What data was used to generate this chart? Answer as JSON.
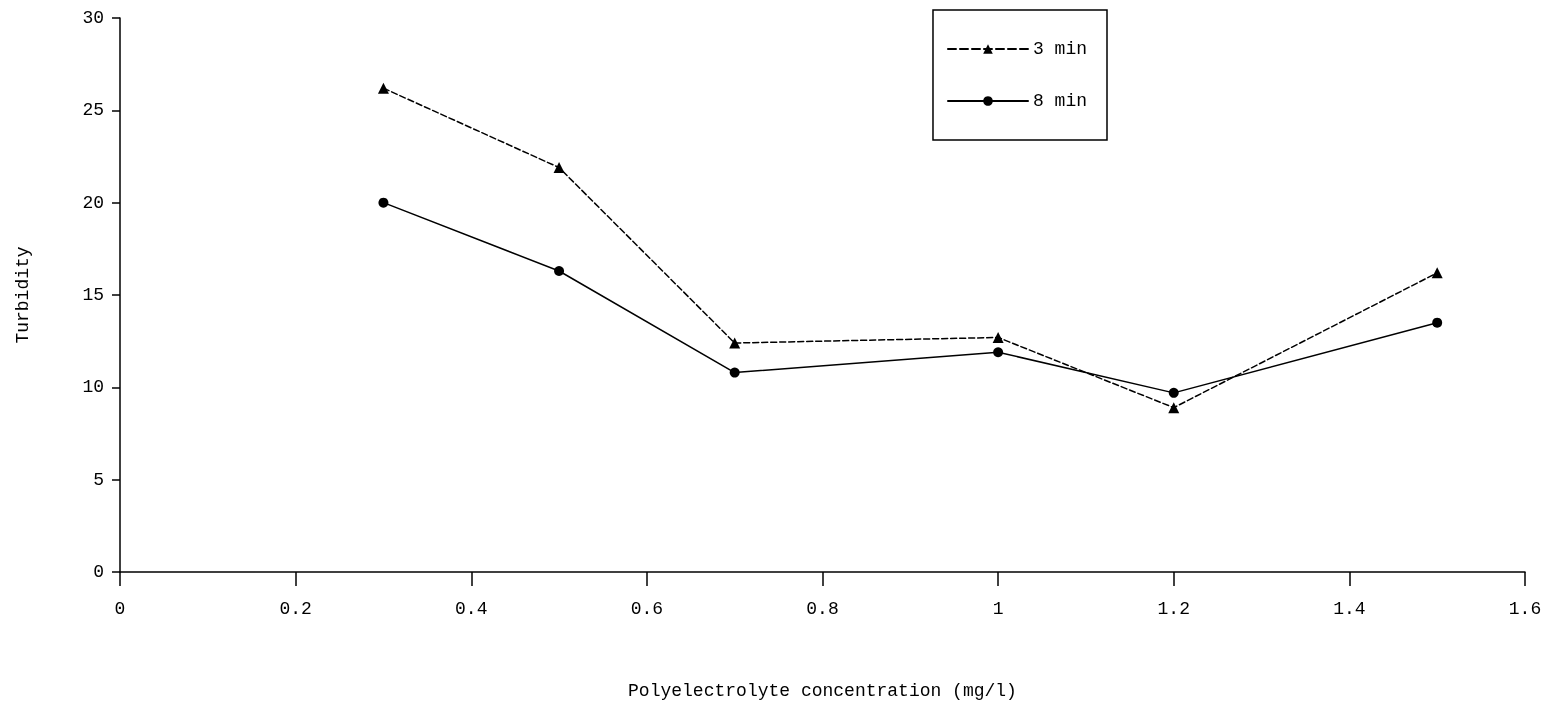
{
  "chart_data": {
    "type": "line",
    "xlabel": "Polyelectrolyte concentration (mg/l)",
    "ylabel": "Turbidity",
    "x": [
      0.3,
      0.5,
      0.7,
      1.0,
      1.2,
      1.5
    ],
    "series": [
      {
        "name": "3 min",
        "color": "#000000",
        "marker": "triangle",
        "line_style": "dashed",
        "values": [
          26.2,
          21.9,
          12.4,
          12.7,
          8.9,
          16.2
        ]
      },
      {
        "name": "8 min",
        "color": "#000000",
        "marker": "circle",
        "line_style": "solid",
        "values": [
          20.0,
          16.3,
          10.8,
          11.9,
          9.7,
          13.5
        ]
      }
    ],
    "xlim": [
      0,
      1.6
    ],
    "xticks": [
      0,
      0.2,
      0.4,
      0.6,
      0.8,
      1,
      1.2,
      1.4,
      1.6
    ],
    "ylim": [
      0,
      30
    ],
    "yticks": [
      0,
      5,
      10,
      15,
      20,
      25,
      30
    ],
    "grid": false,
    "legend": "top right"
  }
}
